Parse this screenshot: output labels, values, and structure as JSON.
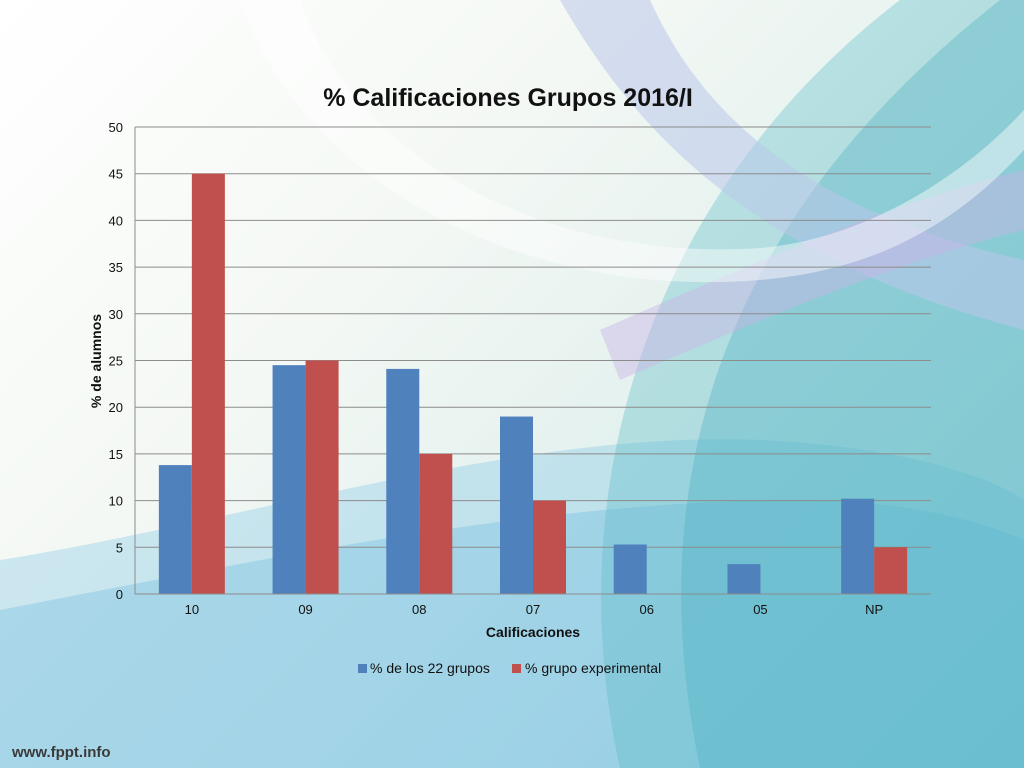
{
  "footer": {
    "site": "www.fppt.info"
  },
  "colors": {
    "series1": "#4f81bd",
    "series2": "#c0504d",
    "grid": "#8c8c8c"
  },
  "chart_data": {
    "type": "bar",
    "title": "% Calificaciones Grupos 2016/I",
    "xlabel": "Calificaciones",
    "ylabel": "% de alumnos",
    "categories": [
      "10",
      "09",
      "08",
      "07",
      "06",
      "05",
      "NP"
    ],
    "series": [
      {
        "name": "% de los 22 grupos",
        "values": [
          13.8,
          24.5,
          24.1,
          19.0,
          5.3,
          3.2,
          10.2
        ]
      },
      {
        "name": "% grupo experimental",
        "values": [
          45,
          25,
          15,
          10,
          0,
          0,
          5
        ]
      }
    ],
    "ylim": [
      0,
      50
    ],
    "yticks": [
      0,
      5,
      10,
      15,
      20,
      25,
      30,
      35,
      40,
      45,
      50
    ],
    "grid": true,
    "legend": "bottom"
  }
}
